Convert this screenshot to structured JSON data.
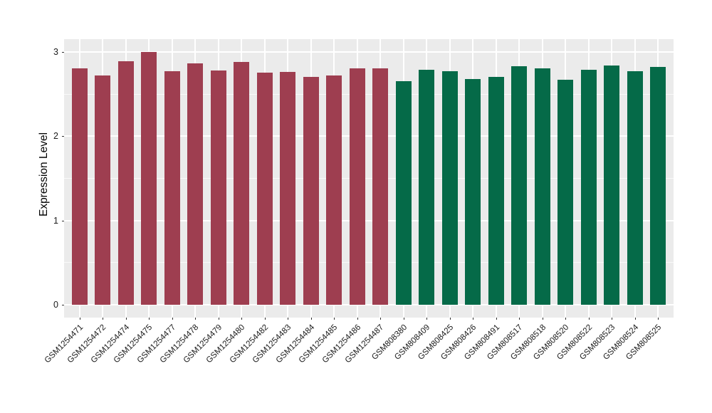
{
  "chart_data": {
    "type": "bar",
    "title": "",
    "xlabel": "",
    "ylabel": "Expression Level",
    "ylim": [
      0,
      3
    ],
    "y_expand": 0.15,
    "yticks": [
      0,
      1,
      2,
      3
    ],
    "ytick_labels": [
      "0",
      "1",
      "2",
      "3"
    ],
    "yminor": [
      0.5,
      1.5,
      2.5
    ],
    "grid": "on",
    "legend": "none",
    "panel_bg": "#EBEBEB",
    "grid_color": "#FFFFFF",
    "tick_color": "#333333",
    "axis_text_color": "#1a1a1a",
    "group_colors": {
      "groupA": "#9E3E50",
      "groupB": "#056A48"
    },
    "categories": [
      "GSM1254471",
      "GSM1254472",
      "GSM1254474",
      "GSM1254475",
      "GSM1254477",
      "GSM1254478",
      "GSM1254479",
      "GSM1254480",
      "GSM1254482",
      "GSM1254483",
      "GSM1254484",
      "GSM1254485",
      "GSM1254486",
      "GSM1254487",
      "GSM808380",
      "GSM808409",
      "GSM808425",
      "GSM808426",
      "GSM808491",
      "GSM808517",
      "GSM808518",
      "GSM808520",
      "GSM808522",
      "GSM808523",
      "GSM808524",
      "GSM808525"
    ],
    "values": [
      2.8,
      2.72,
      2.89,
      3.0,
      2.77,
      2.86,
      2.78,
      2.88,
      2.75,
      2.76,
      2.7,
      2.72,
      2.8,
      2.8,
      2.65,
      2.79,
      2.77,
      2.68,
      2.7,
      2.83,
      2.8,
      2.67,
      2.79,
      2.84,
      2.77,
      2.82
    ],
    "groups": [
      "groupA",
      "groupA",
      "groupA",
      "groupA",
      "groupA",
      "groupA",
      "groupA",
      "groupA",
      "groupA",
      "groupA",
      "groupA",
      "groupA",
      "groupA",
      "groupA",
      "groupB",
      "groupB",
      "groupB",
      "groupB",
      "groupB",
      "groupB",
      "groupB",
      "groupB",
      "groupB",
      "groupB",
      "groupB",
      "groupB"
    ]
  }
}
